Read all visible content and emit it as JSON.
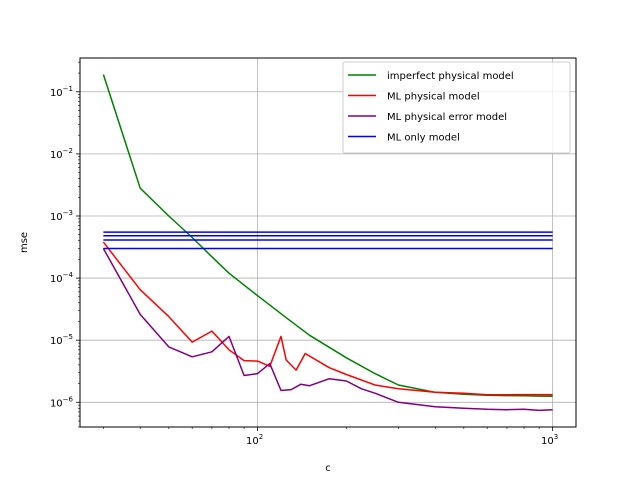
{
  "chart_data": {
    "type": "line",
    "title": "",
    "xlabel": "c",
    "ylabel": "mse",
    "xscale": "log",
    "yscale": "log",
    "xlim": [
      25,
      1200
    ],
    "ylim": [
      4e-07,
      0.35
    ],
    "grid": "on (major)",
    "legend_placement": "top-right",
    "x_ticks": [
      {
        "value": 100,
        "label": "10",
        "exp": "2"
      },
      {
        "value": 1000,
        "label": "10",
        "exp": "3"
      }
    ],
    "y_ticks": [
      {
        "value": 1e-06,
        "label": "10",
        "exp": "−6"
      },
      {
        "value": 1e-05,
        "label": "10",
        "exp": "−5"
      },
      {
        "value": 0.0001,
        "label": "10",
        "exp": "−4"
      },
      {
        "value": 0.001,
        "label": "10",
        "exp": "−3"
      },
      {
        "value": 0.01,
        "label": "10",
        "exp": "−2"
      },
      {
        "value": 0.1,
        "label": "10",
        "exp": "−1"
      }
    ],
    "series": [
      {
        "name": "imperfect physical model",
        "color": "#008000",
        "x": [
          30,
          40,
          50,
          60,
          70,
          80,
          100,
          125,
          150,
          200,
          250,
          300,
          400,
          500,
          600,
          700,
          800,
          900,
          1000
        ],
        "y": [
          0.19,
          0.0028,
          0.001,
          0.00045,
          0.00022,
          0.00012,
          5.2e-05,
          2.3e-05,
          1.2e-05,
          5.2e-06,
          2.9e-06,
          1.9e-06,
          1.45e-06,
          1.35e-06,
          1.3e-06,
          1.28e-06,
          1.27e-06,
          1.26e-06,
          1.25e-06
        ]
      },
      {
        "name": "ML physical model",
        "color": "#ff0000",
        "x": [
          30,
          40,
          50,
          60,
          70,
          80,
          90,
          100,
          110,
          120,
          125,
          135,
          145,
          175,
          200,
          250,
          300,
          400,
          500,
          600,
          700,
          800,
          1000
        ],
        "y": [
          0.00038,
          6.5e-05,
          2.4e-05,
          9.3e-06,
          1.4e-05,
          7e-06,
          4.7e-06,
          4.6e-06,
          3.8e-06,
          1.15e-05,
          4.8e-06,
          3.3e-06,
          6.1e-06,
          3.6e-06,
          2.8e-06,
          1.9e-06,
          1.65e-06,
          1.45e-06,
          1.4e-06,
          1.32e-06,
          1.32e-06,
          1.33e-06,
          1.33e-06
        ]
      },
      {
        "name": "ML physical error model",
        "color": "#800080",
        "x": [
          30,
          40,
          50,
          60,
          70,
          80,
          90,
          100,
          110,
          120,
          130,
          140,
          150,
          175,
          200,
          225,
          250,
          300,
          400,
          500,
          600,
          700,
          800,
          900,
          1000
        ],
        "y": [
          0.0003,
          2.6e-05,
          7.8e-06,
          5.4e-06,
          6.5e-06,
          1.15e-05,
          2.7e-06,
          2.9e-06,
          4.2e-06,
          1.55e-06,
          1.6e-06,
          1.95e-06,
          1.85e-06,
          2.4e-06,
          2.2e-06,
          1.65e-06,
          1.4e-06,
          1e-06,
          8.5e-07,
          8e-07,
          7.7e-07,
          7.6e-07,
          7.7e-07,
          7.4e-07,
          7.6e-07
        ]
      },
      {
        "name": "ML only model",
        "color": "#0000ff",
        "hlines": [
          0.00055,
          0.00048,
          0.00041,
          0.0003
        ],
        "x_range": [
          30,
          1000
        ]
      }
    ]
  }
}
